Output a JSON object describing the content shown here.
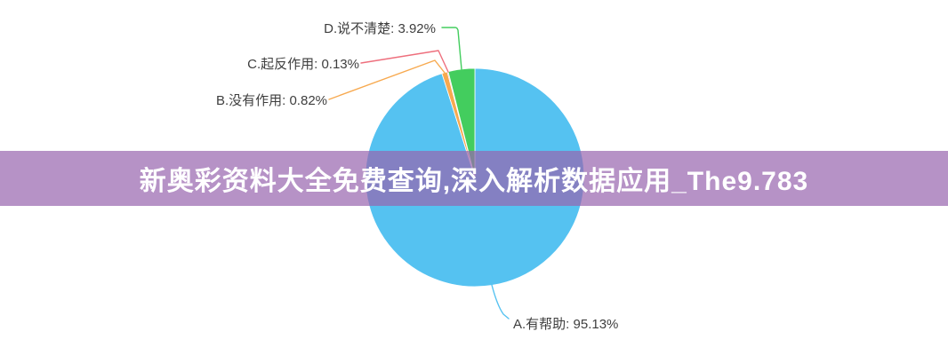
{
  "banner": {
    "text": "新奥彩资料大全免费查询,深入解析数据应用_The9.783",
    "bg_color": "rgba(152,101,175,0.71)",
    "text_color": "#ffffff"
  },
  "chart_data": {
    "type": "pie",
    "title": "",
    "legend": "none",
    "unit": "%",
    "start_angle": "12-o-clock",
    "direction": "clockwise",
    "slices": [
      {
        "key": "a",
        "name": "A.有帮助",
        "value": 95.13,
        "label": "A.有帮助: 95.13%",
        "color": "#55c2f1"
      },
      {
        "key": "b",
        "name": "B.没有作用",
        "value": 0.82,
        "label": "B.没有作用: 0.82%",
        "color": "#f7a94f"
      },
      {
        "key": "c",
        "name": "C.起反作用",
        "value": 0.13,
        "label": "C.起反作用: 0.13%",
        "color": "#ee6f7d"
      },
      {
        "key": "d",
        "name": "D.说不清楚",
        "value": 3.92,
        "label": "D.说不清楚: 3.92%",
        "color": "#43cd5e"
      }
    ]
  }
}
